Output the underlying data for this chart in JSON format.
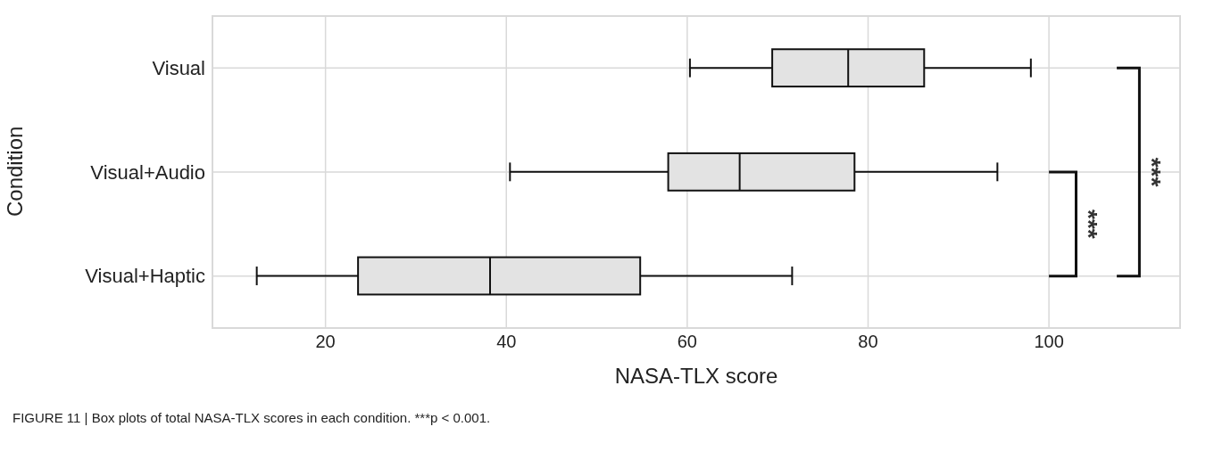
{
  "chart_data": {
    "type": "box",
    "orientation": "horizontal",
    "xlabel": "NASA-TLX score",
    "ylabel": "Condition",
    "categories": [
      "Visual",
      "Visual+Audio",
      "Visual+Haptic"
    ],
    "color": "#e3e3e3",
    "boxes": [
      {
        "low": 60.3,
        "q1": 69.4,
        "median": 77.8,
        "q3": 86.2,
        "high": 98.0
      },
      {
        "low": 40.4,
        "q1": 57.9,
        "median": 65.8,
        "q3": 78.5,
        "high": 94.3
      },
      {
        "low": 12.4,
        "q1": 23.6,
        "median": 38.2,
        "q3": 54.8,
        "high": 71.6
      }
    ],
    "xlim": [
      7.5,
      114.5
    ],
    "xticks": [
      20,
      40,
      60,
      80,
      100
    ],
    "grid": true,
    "annotations": [
      "***",
      "***",
      "FIGURE 11 | Box plots of total NASA-TLX scores in each condition. ***p < 0.001."
    ]
  }
}
